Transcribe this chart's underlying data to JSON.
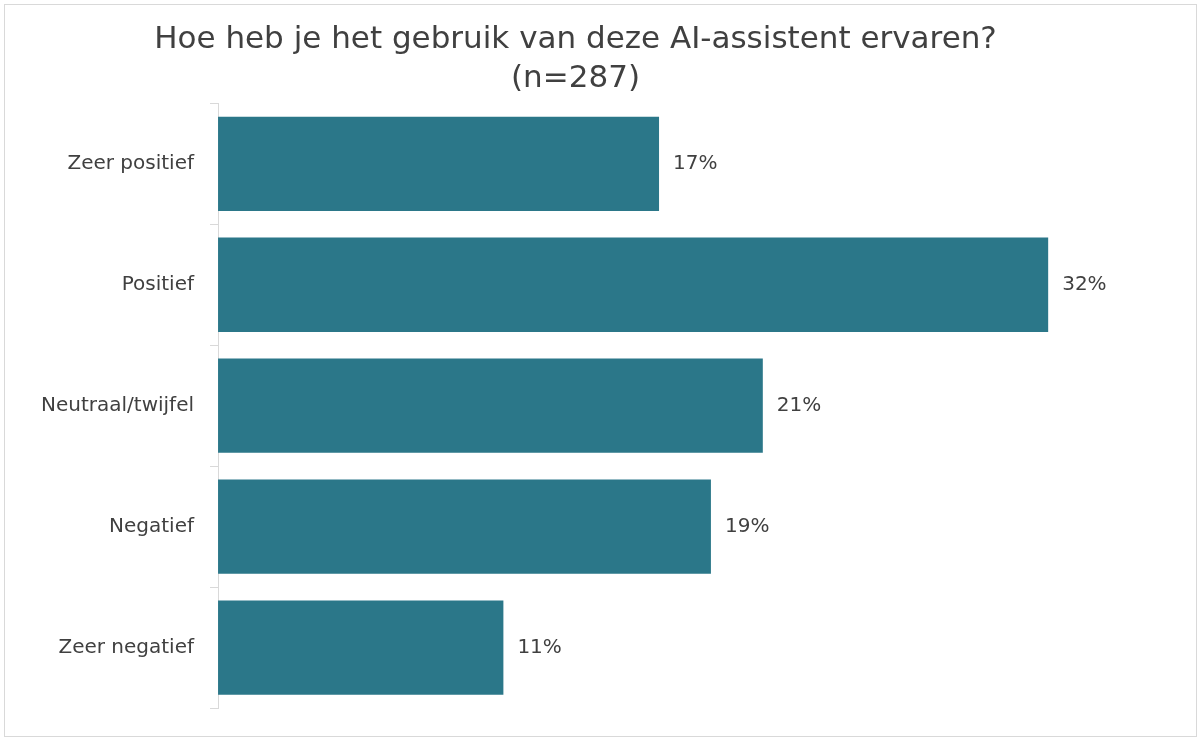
{
  "chart_data": {
    "type": "bar",
    "orientation": "horizontal",
    "title": "Hoe heb je het gebruik van deze AI-assistent ervaren?",
    "subtitle": "(n=287)",
    "categories": [
      "Zeer positief",
      "Positief",
      "Neutraal/twijfel",
      "Negatief",
      "Zeer negatief"
    ],
    "values": [
      17,
      32,
      21,
      19,
      11
    ],
    "color": "#2b7789",
    "value_labels": [
      "17%",
      "32%",
      "21%",
      "19%",
      "11%"
    ]
  }
}
